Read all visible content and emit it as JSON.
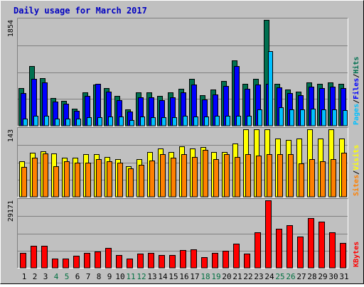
{
  "title": "Daily usage for March 2017",
  "colors": {
    "background": "#c0c0c0",
    "title": "#0000c0",
    "hits": "#007050",
    "files": "#0000ff",
    "pages": "#00c0ff",
    "visits": "#ffff00",
    "sites": "#ff8000",
    "kbytes": "#ff0000",
    "weekend_label": "#007040",
    "gridline": "#808080"
  },
  "chart_data": [
    {
      "type": "bar",
      "name": "hits-files-pages",
      "title": "Daily usage for March 2017",
      "categories": [
        "1",
        "2",
        "3",
        "4",
        "5",
        "6",
        "7",
        "8",
        "9",
        "10",
        "11",
        "12",
        "13",
        "14",
        "15",
        "16",
        "17",
        "18",
        "19",
        "20",
        "21",
        "22",
        "23",
        "24",
        "25",
        "26",
        "27",
        "28",
        "29",
        "30",
        "31"
      ],
      "weekend_days": [
        "4",
        "5",
        "11",
        "12",
        "18",
        "19",
        "25",
        "26"
      ],
      "ymax_label": "1854",
      "ylim": [
        0,
        1854
      ],
      "grid": true,
      "legend_parts": [
        "Pages",
        "Files",
        "Hits"
      ],
      "series": [
        {
          "name": "Hits",
          "values": [
            660,
            1050,
            830,
            480,
            440,
            300,
            580,
            720,
            660,
            520,
            290,
            580,
            580,
            520,
            580,
            650,
            820,
            540,
            630,
            780,
            1150,
            730,
            820,
            1854,
            740,
            630,
            600,
            760,
            740,
            760,
            740
          ]
        },
        {
          "name": "Files",
          "values": [
            570,
            820,
            760,
            420,
            380,
            260,
            520,
            730,
            600,
            450,
            250,
            500,
            500,
            450,
            500,
            580,
            720,
            460,
            550,
            700,
            1050,
            650,
            720,
            740,
            670,
            570,
            540,
            690,
            660,
            680,
            660
          ]
        },
        {
          "name": "Pages",
          "values": [
            130,
            180,
            170,
            130,
            120,
            120,
            150,
            150,
            160,
            160,
            100,
            160,
            150,
            150,
            150,
            170,
            160,
            160,
            170,
            170,
            170,
            170,
            280,
            1310,
            320,
            290,
            280,
            300,
            280,
            280,
            270
          ]
        }
      ]
    },
    {
      "type": "bar",
      "name": "visits-sites",
      "categories": [
        "1",
        "2",
        "3",
        "4",
        "5",
        "6",
        "7",
        "8",
        "9",
        "10",
        "11",
        "12",
        "13",
        "14",
        "15",
        "16",
        "17",
        "18",
        "19",
        "20",
        "21",
        "22",
        "23",
        "24",
        "25",
        "26",
        "27",
        "28",
        "29",
        "30",
        "31"
      ],
      "ymax_label": "143",
      "ylim": [
        0,
        143
      ],
      "grid": true,
      "legend_parts": [
        "Sites",
        "Visits"
      ],
      "series": [
        {
          "name": "Visits",
          "values": [
            75,
            93,
            97,
            92,
            83,
            83,
            90,
            90,
            85,
            80,
            65,
            80,
            95,
            103,
            95,
            107,
            103,
            105,
            95,
            95,
            113,
            143,
            143,
            143,
            123,
            120,
            123,
            143,
            123,
            143,
            123
          ]
        },
        {
          "name": "Sites",
          "values": [
            63,
            83,
            92,
            65,
            75,
            72,
            73,
            80,
            75,
            72,
            60,
            67,
            77,
            90,
            83,
            90,
            85,
            100,
            80,
            90,
            85,
            90,
            88,
            90,
            90,
            90,
            70,
            80,
            75,
            80,
            93
          ]
        }
      ]
    },
    {
      "type": "bar",
      "name": "kbytes",
      "categories": [
        "1",
        "2",
        "3",
        "4",
        "5",
        "6",
        "7",
        "8",
        "9",
        "10",
        "11",
        "12",
        "13",
        "14",
        "15",
        "16",
        "17",
        "18",
        "19",
        "20",
        "21",
        "22",
        "23",
        "24",
        "25",
        "26",
        "27",
        "28",
        "29",
        "30",
        "31"
      ],
      "ymax_label": "29171",
      "ylim": [
        0,
        29171
      ],
      "grid": true,
      "legend_parts": [
        "KBytes"
      ],
      "series": [
        {
          "name": "KBytes",
          "values": [
            6500,
            9500,
            9500,
            4000,
            4000,
            5200,
            6300,
            7000,
            8500,
            5500,
            4000,
            6000,
            6300,
            5500,
            5500,
            7700,
            8000,
            4700,
            6500,
            7500,
            10500,
            6000,
            15500,
            29171,
            17000,
            18500,
            13500,
            21500,
            20000,
            15500,
            10800
          ]
        }
      ]
    }
  ]
}
